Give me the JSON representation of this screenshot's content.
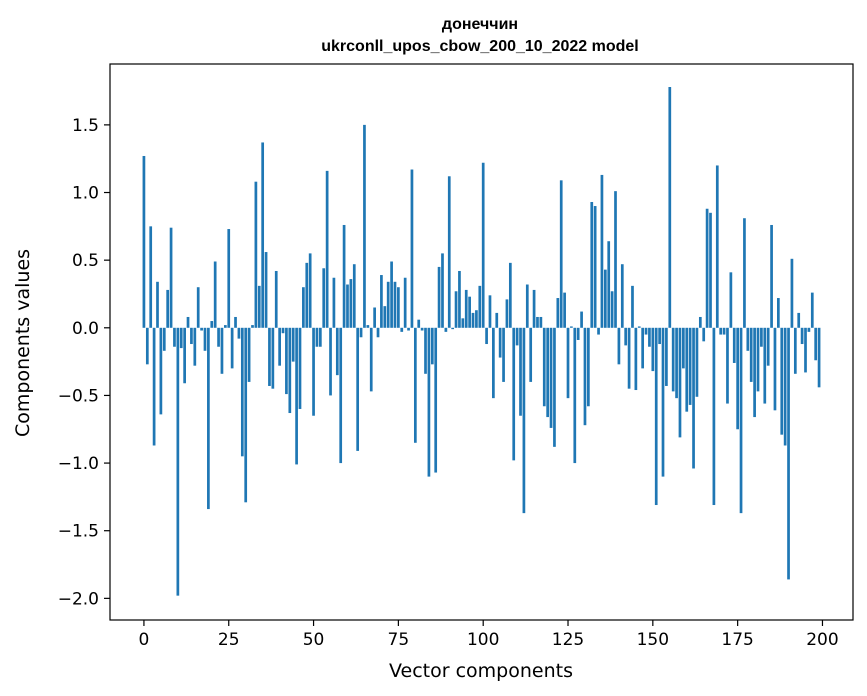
{
  "chart_data": {
    "type": "bar",
    "title_line1": "донеччин",
    "title_line2": "ukrconll_upos_cbow_200_10_2022 model",
    "xlabel": "Vector components",
    "ylabel": "Components values",
    "xlim": [
      -10,
      209
    ],
    "ylim": [
      -2.16,
      1.95
    ],
    "xticks": [
      0,
      25,
      50,
      75,
      100,
      125,
      150,
      175,
      200
    ],
    "yticks": [
      -2.0,
      -1.5,
      -1.0,
      -0.5,
      0.0,
      0.5,
      1.0,
      1.5
    ],
    "ytick_labels": [
      "−2.0",
      "−1.5",
      "−1.0",
      "−0.5",
      "0.0",
      "0.5",
      "1.0",
      "1.5"
    ],
    "bar_color": "#1f77b4",
    "values": [
      1.27,
      -0.27,
      0.75,
      -0.87,
      0.34,
      -0.64,
      -0.17,
      0.28,
      0.74,
      -0.14,
      -1.98,
      -0.15,
      -0.41,
      0.08,
      -0.12,
      -0.28,
      0.3,
      -0.02,
      -0.17,
      -1.34,
      0.05,
      0.49,
      -0.14,
      -0.34,
      0.02,
      0.73,
      -0.3,
      0.08,
      -0.08,
      -0.95,
      -1.29,
      -0.4,
      0.02,
      1.08,
      0.31,
      1.37,
      0.56,
      -0.43,
      -0.45,
      0.42,
      -0.28,
      -0.04,
      -0.49,
      -0.63,
      -0.25,
      -1.01,
      -0.6,
      0.3,
      0.48,
      0.55,
      -0.65,
      -0.14,
      -0.14,
      0.44,
      1.16,
      -0.5,
      0.37,
      -0.35,
      -1.0,
      0.76,
      0.32,
      0.36,
      0.47,
      -0.91,
      -0.07,
      1.5,
      0.02,
      -0.47,
      0.15,
      -0.07,
      0.39,
      0.16,
      0.34,
      0.49,
      0.34,
      0.3,
      -0.03,
      0.37,
      -0.02,
      1.17,
      -0.85,
      0.06,
      -0.02,
      -0.34,
      -1.1,
      -0.27,
      -1.07,
      0.45,
      0.55,
      -0.03,
      1.12,
      -0.01,
      0.27,
      0.42,
      0.07,
      0.28,
      0.23,
      0.11,
      0.13,
      0.31,
      1.22,
      -0.12,
      0.24,
      -0.52,
      0.11,
      -0.22,
      -0.4,
      0.21,
      0.48,
      -0.98,
      -0.13,
      -0.65,
      -1.37,
      0.32,
      -0.4,
      0.28,
      0.08,
      0.08,
      -0.58,
      -0.66,
      -0.74,
      -0.88,
      0.22,
      1.09,
      0.26,
      -0.52,
      0.01,
      -1.0,
      -0.09,
      0.12,
      -0.72,
      -0.58,
      0.93,
      0.9,
      -0.05,
      1.13,
      0.43,
      0.64,
      0.27,
      1.01,
      -0.27,
      0.47,
      -0.13,
      -0.45,
      0.31,
      -0.46,
      0.01,
      -0.3,
      -0.05,
      -0.14,
      -0.32,
      -1.31,
      -0.12,
      -1.1,
      -0.43,
      1.78,
      -0.47,
      -0.52,
      -0.81,
      -0.3,
      -0.62,
      -0.57,
      -1.04,
      -0.51,
      0.08,
      -0.1,
      0.88,
      0.85,
      -1.31,
      1.2,
      -0.05,
      -0.05,
      -0.56,
      0.41,
      -0.26,
      -0.75,
      -1.37,
      0.81,
      -0.17,
      -0.4,
      -0.66,
      -0.47,
      -0.14,
      -0.56,
      -0.28,
      0.76,
      -0.61,
      0.22,
      -0.79,
      -0.87,
      -1.86,
      0.51,
      -0.34,
      0.11,
      -0.12,
      -0.33,
      -0.03,
      0.26,
      -0.24,
      -0.44
    ]
  }
}
